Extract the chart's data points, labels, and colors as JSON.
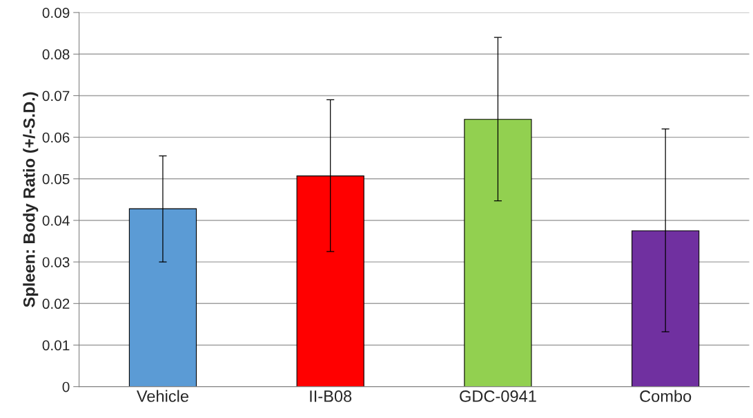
{
  "chart_data": {
    "type": "bar",
    "ylabel": "Spleen: Body Ratio (+/-S.D.)",
    "categories": [
      "Vehicle",
      "II-B08",
      "GDC-0941",
      "Combo"
    ],
    "values": [
      0.0428,
      0.0507,
      0.0643,
      0.0375
    ],
    "colors": [
      "#5b9bd5",
      "#ff0000",
      "#92d050",
      "#7030a0"
    ],
    "errors": [
      [
        0.03,
        0.0555
      ],
      [
        0.0325,
        0.069
      ],
      [
        0.0447,
        0.084
      ],
      [
        0.0132,
        0.062
      ]
    ],
    "ylim": [
      0,
      0.09
    ],
    "yticks": [
      {
        "value": 0,
        "label": "0"
      },
      0.01,
      0.02,
      0.03,
      0.04,
      0.05,
      0.06,
      0.07,
      0.08,
      0.09
    ],
    "grid": "y"
  }
}
